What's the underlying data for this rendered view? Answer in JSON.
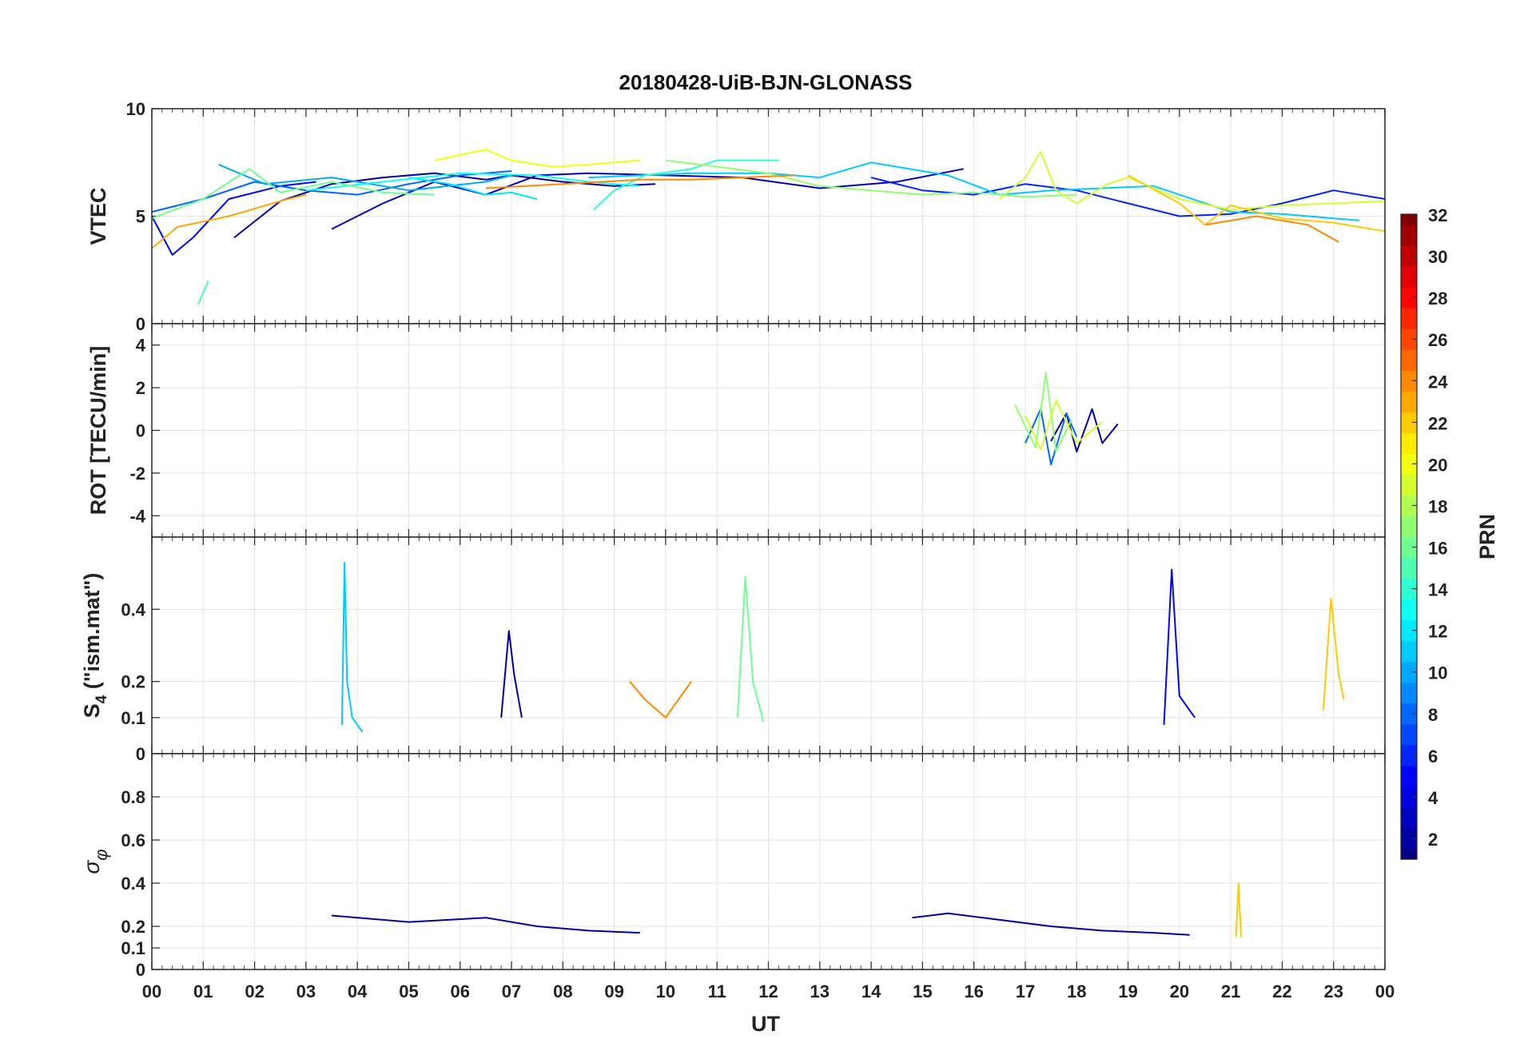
{
  "chart_data": {
    "type": "line",
    "title": "20180428-UiB-BJN-GLONASS",
    "xlabel": "UT",
    "x_tick_labels": [
      "00",
      "01",
      "02",
      "03",
      "04",
      "05",
      "06",
      "07",
      "08",
      "09",
      "10",
      "11",
      "12",
      "13",
      "14",
      "15",
      "16",
      "17",
      "18",
      "19",
      "20",
      "21",
      "22",
      "23",
      "00"
    ],
    "xlim": [
      0,
      24
    ],
    "grid": true,
    "panels": [
      {
        "id": "vtec",
        "ylabel": "VTEC",
        "ylim": [
          0,
          10
        ],
        "yticks": [
          0,
          5,
          10
        ],
        "series": [
          {
            "prn": 2,
            "x": [
              1.6,
              2.5,
              3.5,
              4.5,
              5.5,
              6.5,
              7.0,
              8.0,
              9.0,
              9.8
            ],
            "y": [
              4.0,
              5.7,
              6.5,
              6.8,
              7.0,
              6.7,
              6.9,
              6.6,
              6.4,
              6.5
            ]
          },
          {
            "prn": 3,
            "x": [
              3.5,
              4.5,
              5.5,
              6.5,
              7.5,
              8.5,
              10.0,
              11.5,
              13.0,
              14.5,
              15.8
            ],
            "y": [
              4.4,
              5.6,
              6.6,
              6.0,
              6.9,
              7.0,
              6.9,
              6.8,
              6.3,
              6.6,
              7.2
            ]
          },
          {
            "prn": 5,
            "x": [
              0.0,
              0.4,
              0.8,
              1.5,
              2.5,
              3.2
            ],
            "y": [
              5.0,
              3.2,
              4.0,
              5.8,
              6.4,
              6.6
            ]
          },
          {
            "prn": 6,
            "x": [
              14.0,
              15.0,
              16.0,
              17.0,
              18.0,
              19.0,
              20.0,
              21.0,
              22.0,
              23.0,
              24.0
            ],
            "y": [
              6.8,
              6.2,
              6.0,
              6.5,
              6.2,
              5.6,
              5.0,
              5.1,
              5.6,
              6.2,
              5.8
            ]
          },
          {
            "prn": 8,
            "x": [
              0.0,
              1.0,
              2.0,
              3.0,
              4.0,
              5.0,
              6.0,
              7.0
            ],
            "y": [
              5.2,
              5.8,
              6.6,
              6.2,
              6.0,
              6.5,
              6.9,
              7.1
            ]
          },
          {
            "prn": 10,
            "x": [
              1.3,
              2.2,
              3.5,
              5.0,
              6.5,
              7.0
            ],
            "y": [
              7.4,
              6.5,
              6.8,
              6.2,
              6.6,
              6.9
            ]
          },
          {
            "prn": 11,
            "x": [
              8.5,
              10.5,
              12.0,
              13.0,
              14.0,
              15.5,
              16.5,
              17.5,
              18.5,
              19.5,
              21.0,
              22.0,
              23.5
            ],
            "y": [
              6.8,
              7.0,
              7.0,
              6.8,
              7.5,
              6.9,
              6.0,
              6.2,
              6.3,
              6.4,
              5.2,
              5.1,
              4.8
            ]
          },
          {
            "prn": 12,
            "x": [
              5.0,
              5.8,
              6.5,
              7.0,
              7.5
            ],
            "y": [
              6.8,
              6.5,
              6.0,
              6.1,
              5.8
            ]
          },
          {
            "prn": 13,
            "x": [
              3.0,
              4.5,
              6.0,
              7.5,
              8.5,
              9.5
            ],
            "y": [
              6.2,
              6.6,
              7.0,
              6.9,
              6.6,
              6.4
            ]
          },
          {
            "prn": 14,
            "x": [
              8.6,
              9.0,
              9.6,
              10.5,
              11.0,
              12.2
            ],
            "y": [
              5.3,
              6.2,
              6.9,
              7.2,
              7.6,
              7.6
            ]
          },
          {
            "prn": 15,
            "x": [
              0.9,
              1.1
            ],
            "y": [
              0.9,
              2.0
            ]
          },
          {
            "prn": 16,
            "x": [
              0.0,
              1.0,
              1.9,
              2.5,
              3.5,
              4.5,
              5.5
            ],
            "y": [
              4.9,
              5.8,
              7.2,
              6.1,
              6.6,
              6.1,
              6.0
            ]
          },
          {
            "prn": 17,
            "x": [
              10.0,
              11.0,
              12.0,
              13.0,
              14.0,
              15.0,
              16.0,
              17.0,
              18.0
            ],
            "y": [
              7.6,
              7.3,
              7.0,
              6.4,
              6.2,
              6.0,
              6.1,
              5.9,
              6.0
            ]
          },
          {
            "prn": 19,
            "x": [
              16.5,
              17.0,
              17.3,
              17.6,
              18.0,
              18.6,
              19.0,
              20.0,
              21.0,
              22.0,
              23.0,
              24.0
            ],
            "y": [
              5.8,
              6.8,
              8.0,
              6.2,
              5.6,
              6.5,
              6.8,
              5.8,
              5.3,
              5.5,
              5.6,
              5.7
            ]
          },
          {
            "prn": 20,
            "x": [
              5.5,
              6.5,
              7.0,
              7.8,
              8.5,
              9.5
            ],
            "y": [
              7.6,
              8.1,
              7.6,
              7.3,
              7.4,
              7.6
            ]
          },
          {
            "prn": 22,
            "x": [
              19.0,
              20.0,
              20.5,
              21.0,
              22.0,
              23.0,
              24.0
            ],
            "y": [
              6.9,
              5.6,
              4.6,
              5.5,
              4.9,
              4.7,
              4.3
            ]
          },
          {
            "prn": 23,
            "x": [
              0.0,
              0.5,
              1.5,
              2.5,
              3.0
            ],
            "y": [
              3.5,
              4.5,
              5.0,
              5.7,
              6.0
            ]
          },
          {
            "prn": 24,
            "x": [
              6.5,
              8.0,
              9.5,
              10.5,
              11.5,
              12.5
            ],
            "y": [
              6.3,
              6.5,
              6.7,
              6.7,
              6.8,
              6.9
            ]
          },
          {
            "prn": 24,
            "x": [
              20.5,
              21.5,
              22.5,
              23.1
            ],
            "y": [
              4.6,
              5.0,
              4.6,
              3.8
            ]
          }
        ]
      },
      {
        "id": "rot",
        "ylabel": "ROT [TECU/min]",
        "ylim": [
          -5,
          5
        ],
        "yticks": [
          -4,
          -2,
          0,
          2,
          4
        ],
        "series": [
          {
            "prn": 2,
            "x": [
              17.5,
              17.8,
              18.0,
              18.3,
              18.5,
              18.8
            ],
            "y": [
              -0.5,
              0.8,
              -1.0,
              1.0,
              -0.6,
              0.3
            ]
          },
          {
            "prn": 8,
            "x": [
              17.0,
              17.3,
              17.5,
              17.8,
              18.0
            ],
            "y": [
              -0.6,
              1.0,
              -1.6,
              0.8,
              -0.3
            ]
          },
          {
            "prn": 17,
            "x": [
              16.8,
              17.2,
              17.4,
              17.6,
              17.9
            ],
            "y": [
              1.2,
              -0.8,
              2.7,
              -1.0,
              0.5
            ]
          },
          {
            "prn": 19,
            "x": [
              17.0,
              17.3,
              17.6,
              18.0,
              18.5
            ],
            "y": [
              0.7,
              -0.9,
              1.4,
              -0.6,
              0.4
            ]
          }
        ]
      },
      {
        "id": "s4",
        "ylabel": "S4 (\"ism.mat\")",
        "ylim": [
          0,
          0.6
        ],
        "yticks": [
          0,
          0.1,
          0.2,
          0.4
        ],
        "series": [
          {
            "prn": 11,
            "x": [
              3.7,
              3.75,
              3.8,
              3.9,
              4.1
            ],
            "y": [
              0.08,
              0.53,
              0.2,
              0.1,
              0.06
            ]
          },
          {
            "prn": 5,
            "x": [
              19.7,
              19.85,
              20.0,
              20.3
            ],
            "y": [
              0.08,
              0.51,
              0.16,
              0.1
            ]
          },
          {
            "prn": 16,
            "x": [
              11.4,
              11.55,
              11.7,
              11.9
            ],
            "y": [
              0.1,
              0.49,
              0.2,
              0.09
            ]
          },
          {
            "prn": 22,
            "x": [
              22.8,
              22.95,
              23.1,
              23.2
            ],
            "y": [
              0.12,
              0.43,
              0.22,
              0.15
            ]
          },
          {
            "prn": 2,
            "x": [
              6.8,
              6.95,
              7.05,
              7.2
            ],
            "y": [
              0.1,
              0.34,
              0.22,
              0.1
            ]
          },
          {
            "prn": 24,
            "x": [
              9.3,
              9.6,
              10.0,
              10.5
            ],
            "y": [
              0.2,
              0.15,
              0.1,
              0.2
            ]
          }
        ]
      },
      {
        "id": "sigma_phi",
        "ylabel": "σ φ",
        "ylim": [
          0,
          1
        ],
        "yticks": [
          0,
          0.1,
          0.2,
          0.4,
          0.6,
          0.8
        ],
        "series": [
          {
            "prn": 2,
            "x": [
              3.5,
              5.0,
              6.5,
              7.5,
              8.5,
              9.5
            ],
            "y": [
              0.25,
              0.22,
              0.24,
              0.2,
              0.18,
              0.17
            ]
          },
          {
            "prn": 2,
            "x": [
              14.8,
              15.5,
              16.5,
              17.5,
              18.5,
              19.5,
              20.2
            ],
            "y": [
              0.24,
              0.26,
              0.23,
              0.2,
              0.18,
              0.17,
              0.16
            ]
          },
          {
            "prn": 22,
            "x": [
              21.1,
              21.15,
              21.2
            ],
            "y": [
              0.15,
              0.4,
              0.15
            ]
          }
        ]
      }
    ],
    "colorbar": {
      "label": "PRN",
      "range": [
        1,
        32
      ],
      "ticks": [
        2,
        4,
        6,
        8,
        10,
        12,
        14,
        16,
        18,
        20,
        22,
        24,
        26,
        28,
        30,
        32
      ],
      "colormap": "jet"
    }
  }
}
